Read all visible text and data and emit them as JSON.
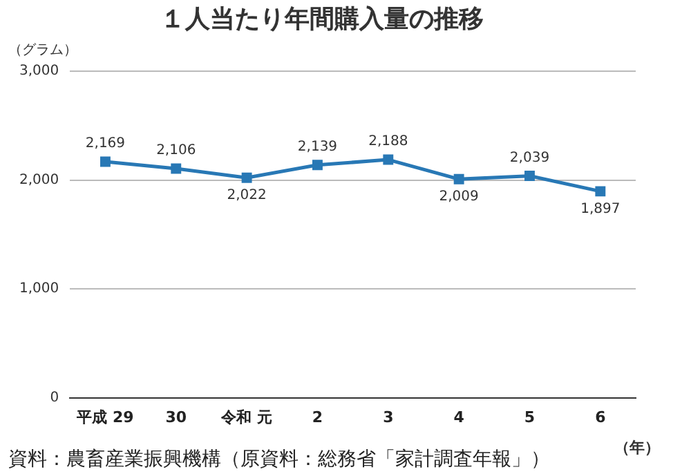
{
  "chart_data": {
    "type": "line",
    "title": "１人当たり年間購入量の推移",
    "ylabel": "（グラム）",
    "xlabel": "（年）",
    "categories": [
      "平成 29",
      "30",
      "令和 元",
      "2",
      "3",
      "4",
      "5",
      "6"
    ],
    "series": [
      {
        "color": "#2878b5",
        "values": [
          2169,
          2106,
          2022,
          2139,
          2188,
          2009,
          2039,
          1897
        ],
        "value_labels": [
          "2,169",
          "2,106",
          "2,022",
          "2,139",
          "2,188",
          "2,009",
          "2,039",
          "1,897"
        ]
      }
    ],
    "ylim": [
      0,
      3000
    ],
    "yticks": [
      {
        "value": 0,
        "label": "0"
      },
      {
        "value": 1000,
        "label": "1,000"
      },
      {
        "value": 2000,
        "label": "2,000"
      },
      {
        "value": 3000,
        "label": "3,000"
      }
    ],
    "grid": "y",
    "legend": false,
    "marker": "square",
    "line_style": "solid",
    "annotations": [
      "資料：農畜産業振興機構（原資料：総務省「家計調査年報」）"
    ]
  }
}
